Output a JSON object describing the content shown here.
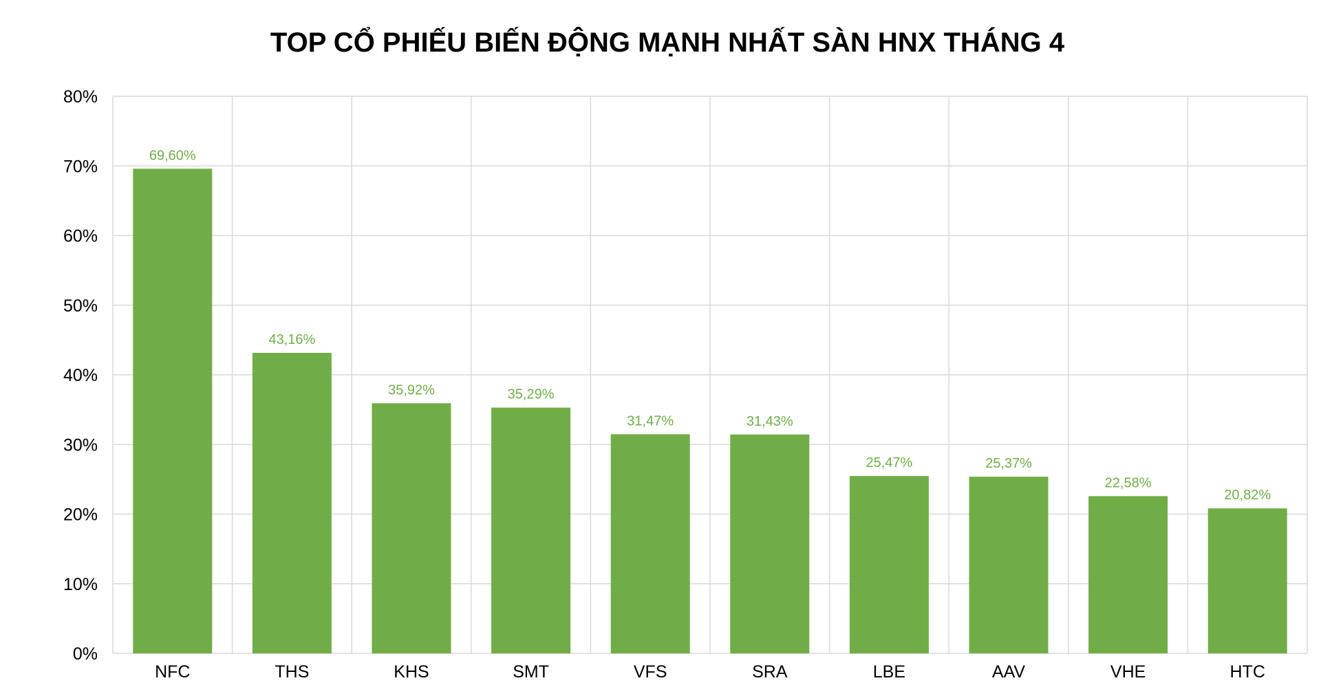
{
  "chart_data": {
    "type": "bar",
    "title": "TOP CỔ PHIẾU BIẾN ĐỘNG MẠNH NHẤT SÀN HNX THÁNG 4",
    "xlabel": "",
    "ylabel": "",
    "categories": [
      "NFC",
      "THS",
      "KHS",
      "SMT",
      "VFS",
      "SRA",
      "LBE",
      "AAV",
      "VHE",
      "HTC"
    ],
    "values": [
      69.6,
      43.16,
      35.92,
      35.29,
      31.47,
      31.43,
      25.47,
      25.37,
      22.58,
      20.82
    ],
    "data_labels": [
      "69,60%",
      "43,16%",
      "35,92%",
      "35,29%",
      "31,47%",
      "31,43%",
      "25,47%",
      "25,37%",
      "22,58%",
      "20,82%"
    ],
    "ylim": [
      0,
      80
    ],
    "y_ticks": [
      0,
      10,
      20,
      30,
      40,
      50,
      60,
      70,
      80
    ],
    "y_tick_labels": [
      "0%",
      "10%",
      "20%",
      "30%",
      "40%",
      "50%",
      "60%",
      "70%",
      "80%"
    ],
    "grid": true,
    "bar_color": "#70ad47",
    "label_color": "#70ad47"
  }
}
